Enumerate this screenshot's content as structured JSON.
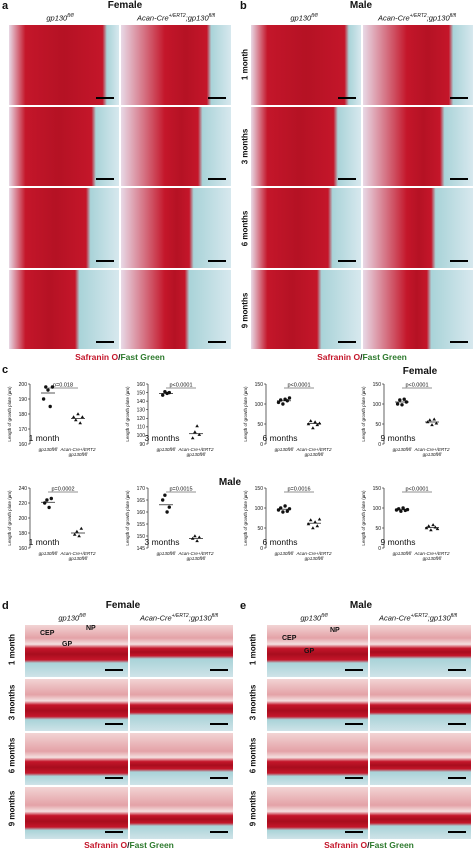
{
  "panels": {
    "a": {
      "letter": "a",
      "title": "Female",
      "col1": "gp130",
      "col1_sup": "fl/fl",
      "col2": "Acan-Cre",
      "col2_sup": "+/ERT2",
      "col2b": ";gp130",
      "col2b_sup": "fl/fl"
    },
    "b": {
      "letter": "b",
      "title": "Male",
      "col1": "gp130",
      "col1_sup": "fl/fl",
      "col2": "Acan-Cre",
      "col2_sup": "+/ERT2",
      "col2b": ";gp130",
      "col2b_sup": "fl/fl"
    },
    "c": {
      "letter": "c",
      "female": "Female",
      "male": "Male"
    },
    "d": {
      "letter": "d",
      "title": "Female",
      "col1": "gp130",
      "col1_sup": "fl/fl",
      "col2": "Acan-Cre",
      "col2_sup": "+/ERT2",
      "col2b": ";gp130",
      "col2b_sup": "fl/fl",
      "tags": [
        "CEP",
        "NP",
        "GP"
      ]
    },
    "e": {
      "letter": "e",
      "title": "Male",
      "col1": "gp130",
      "col1_sup": "fl/fl",
      "col2": "Acan-Cre",
      "col2_sup": "+/ERT2",
      "col2b": ";gp130",
      "col2b_sup": "fl/fl",
      "tags": [
        "CEP",
        "NP",
        "GP"
      ]
    }
  },
  "rows": [
    "1 month",
    "3 months",
    "6 months",
    "9 months"
  ],
  "stain": {
    "red": "Safranin O",
    "sep": "/",
    "green": "Fast Green"
  },
  "colors": {
    "safranin": "#c4162a",
    "fast_green": "#a9d3d8",
    "background": "#ffffff"
  },
  "chart_data": [
    {
      "type": "scatter",
      "panel": "female-1m",
      "ylabel": "Length of growth plate (µm)",
      "ylim": [
        160,
        200
      ],
      "yticks": [
        160,
        170,
        180,
        190,
        200
      ],
      "categories": [
        "gp130fl/fl",
        "Acan-Cre+/ERT2 gp130fl/fl"
      ],
      "pvalue": "p=0.018",
      "annotation": "1 month",
      "series": [
        {
          "values": [
            190,
            198,
            196,
            185,
            198
          ]
        },
        {
          "values": [
            178,
            176,
            180,
            174,
            178
          ]
        }
      ],
      "means": [
        194,
        177
      ]
    },
    {
      "type": "scatter",
      "panel": "female-3m",
      "ylabel": "Length of growth plate (µm)",
      "ylim": [
        90,
        160
      ],
      "yticks": [
        90,
        100,
        110,
        120,
        130,
        140,
        150,
        160
      ],
      "categories": [
        "gp130fl/fl",
        "Acan-Cre+/ERT2 gp130fl/fl"
      ],
      "pvalue": "p<0.0001",
      "annotation": "3 months",
      "series": [
        {
          "values": [
            147,
            151,
            149,
            150
          ]
        },
        {
          "values": [
            97,
            104,
            111,
            101
          ]
        }
      ],
      "means": [
        149,
        102
      ]
    },
    {
      "type": "scatter",
      "panel": "female-6m",
      "ylabel": "Length of growth plate (µm)",
      "ylim": [
        0,
        150
      ],
      "yticks": [
        0,
        50,
        100,
        150
      ],
      "categories": [
        "gp130fl/fl",
        "Acan-Cre+/ERT2 gp130fl/fl"
      ],
      "pvalue": "p<0.0001",
      "annotation": "6 months",
      "series": [
        {
          "values": [
            104,
            110,
            100,
            112,
            108,
            115
          ]
        },
        {
          "values": [
            50,
            58,
            40,
            55,
            48,
            52
          ]
        }
      ],
      "means": [
        108,
        51
      ]
    },
    {
      "type": "scatter",
      "panel": "female-9m",
      "ylabel": "Length of growth plate (µm)",
      "ylim": [
        0,
        150
      ],
      "yticks": [
        0,
        50,
        100,
        150
      ],
      "categories": [
        "gp130fl/fl",
        "Acan-Cre+/ERT2 gp130fl/fl"
      ],
      "pvalue": "p<0.0001",
      "annotation": "9 months",
      "series": [
        {
          "values": [
            100,
            110,
            98,
            112,
            105
          ]
        },
        {
          "values": [
            55,
            60,
            48,
            62,
            52
          ]
        }
      ],
      "means": [
        105,
        55
      ]
    },
    {
      "type": "scatter",
      "panel": "male-1m",
      "ylabel": "Length of growth plate (µm)",
      "ylim": [
        160,
        240
      ],
      "yticks": [
        160,
        180,
        200,
        220,
        240
      ],
      "categories": [
        "gp130fl/fl",
        "Acan-Cre+/ERT2 gp130fl/fl"
      ],
      "pvalue": "p=0.0002",
      "annotation": "1 month",
      "series": [
        {
          "values": [
            220,
            224,
            214,
            226
          ]
        },
        {
          "values": [
            178,
            182,
            176,
            186
          ]
        }
      ],
      "means": [
        221,
        180
      ]
    },
    {
      "type": "scatter",
      "panel": "male-3m",
      "ylabel": "Length of growth plate (µm)",
      "ylim": [
        145,
        170
      ],
      "yticks": [
        145,
        150,
        155,
        160,
        165,
        170
      ],
      "categories": [
        "gp130fl/fl",
        "Acan-Cre+/ERT2 gp130fl/fl"
      ],
      "pvalue": "p=0.0015",
      "annotation": "3 months",
      "series": [
        {
          "values": [
            165,
            167,
            160,
            162
          ]
        },
        {
          "values": [
            149,
            150,
            148,
            149.5
          ]
        }
      ],
      "means": [
        163,
        149
      ]
    },
    {
      "type": "scatter",
      "panel": "male-6m",
      "ylabel": "Length of growth plate (µm)",
      "ylim": [
        0,
        150
      ],
      "yticks": [
        0,
        50,
        100,
        150
      ],
      "categories": [
        "gp130fl/fl",
        "Acan-Cre+/ERT2 gp130fl/fl"
      ],
      "pvalue": "p=0.0016",
      "annotation": "6 months",
      "series": [
        {
          "values": [
            95,
            100,
            90,
            105,
            92,
            98
          ]
        },
        {
          "values": [
            60,
            70,
            50,
            65,
            55,
            72
          ]
        }
      ],
      "means": [
        97,
        62
      ]
    },
    {
      "type": "scatter",
      "panel": "male-9m",
      "ylabel": "Length of growth plate (µm)",
      "ylim": [
        0,
        150
      ],
      "yticks": [
        0,
        50,
        100,
        150
      ],
      "categories": [
        "gp130fl/fl",
        "Acan-Cre+/ERT2 gp130fl/fl"
      ],
      "pvalue": "p<0.0001",
      "annotation": "9 months",
      "series": [
        {
          "values": [
            95,
            98,
            92,
            100,
            94,
            96
          ]
        },
        {
          "values": [
            50,
            55,
            45,
            58,
            52,
            48
          ]
        }
      ],
      "means": [
        96,
        51
      ]
    }
  ]
}
